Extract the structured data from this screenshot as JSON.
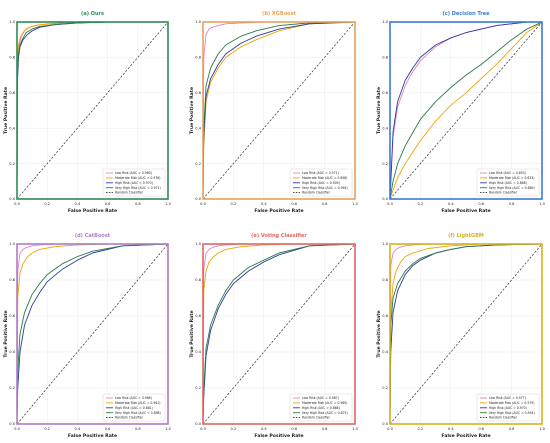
{
  "figure": {
    "xlabel": "False Positive Rate",
    "ylabel": "True Positive Rate",
    "xticks": [
      "0.0",
      "0.2",
      "0.4",
      "0.6",
      "0.8",
      "1.0"
    ],
    "yticks": [
      "0.0",
      "0.2",
      "0.4",
      "0.6",
      "0.8",
      "1.0"
    ]
  },
  "colors": {
    "low": "#e87ec4",
    "moderate": "#f0a500",
    "high": "#2b3c9e",
    "very_high": "#2d7a4a",
    "random": "#333333",
    "grid": "#e6e6e6"
  },
  "chart_data": [
    {
      "type": "line",
      "title": "(a) Ours",
      "frame_color": "#2e8b57",
      "xlabel": "False Positive Rate",
      "ylabel": "True Positive Rate",
      "xlim": [
        0,
        1
      ],
      "ylim": [
        0,
        1
      ],
      "grid": true,
      "legend_position": "lower-right",
      "series": [
        {
          "name": "Low Risk (AUC = 0.960)",
          "key": "low",
          "x": [
            0,
            0.003,
            0.01,
            0.02,
            0.03,
            0.05,
            0.08,
            0.12,
            0.2,
            0.3,
            0.5,
            0.7,
            1.0
          ],
          "y": [
            0,
            0.7,
            0.84,
            0.89,
            0.92,
            0.95,
            0.97,
            0.98,
            0.99,
            0.995,
            1,
            1,
            1
          ]
        },
        {
          "name": "Moderate Risk (AUC = 0.978)",
          "key": "moderate",
          "x": [
            0,
            0.003,
            0.01,
            0.02,
            0.04,
            0.06,
            0.1,
            0.15,
            0.25,
            0.4,
            0.6,
            1.0
          ],
          "y": [
            0,
            0.78,
            0.87,
            0.91,
            0.94,
            0.96,
            0.975,
            0.985,
            0.99,
            0.995,
            1,
            1
          ]
        },
        {
          "name": "High Risk (AUC = 0.970)",
          "key": "high",
          "x": [
            0,
            0.003,
            0.01,
            0.02,
            0.04,
            0.07,
            0.1,
            0.15,
            0.25,
            0.4,
            0.6,
            1.0
          ],
          "y": [
            0,
            0.66,
            0.8,
            0.86,
            0.9,
            0.93,
            0.95,
            0.97,
            0.985,
            0.995,
            1,
            1
          ]
        },
        {
          "name": "Very High Risk (AUC = 0.971)",
          "key": "very_high",
          "x": [
            0,
            0.003,
            0.01,
            0.02,
            0.04,
            0.06,
            0.1,
            0.15,
            0.25,
            0.4,
            0.6,
            1.0
          ],
          "y": [
            0,
            0.72,
            0.82,
            0.87,
            0.91,
            0.94,
            0.96,
            0.975,
            0.985,
            0.995,
            1,
            1
          ]
        },
        {
          "name": "Random Classifier",
          "key": "random",
          "dashed": true,
          "x": [
            0,
            1
          ],
          "y": [
            0,
            1
          ]
        }
      ]
    },
    {
      "type": "line",
      "title": "(b) XGBoost",
      "frame_color": "#e8a15a",
      "xlabel": "False Positive Rate",
      "ylabel": "True Positive Rate",
      "xlim": [
        0,
        1
      ],
      "ylim": [
        0,
        1
      ],
      "grid": true,
      "legend_position": "lower-right",
      "series": [
        {
          "name": "Low Risk (AUC = 0.971)",
          "key": "low",
          "x": [
            0,
            0.005,
            0.02,
            0.04,
            0.06,
            0.1,
            0.15,
            0.25,
            0.4,
            0.6,
            1.0
          ],
          "y": [
            0,
            0.8,
            0.93,
            0.96,
            0.97,
            0.98,
            0.99,
            0.995,
            1,
            1,
            1
          ]
        },
        {
          "name": "Moderate Risk (AUC = 0.898)",
          "key": "moderate",
          "x": [
            0,
            0.005,
            0.02,
            0.05,
            0.1,
            0.15,
            0.25,
            0.35,
            0.5,
            0.7,
            1.0
          ],
          "y": [
            0,
            0.3,
            0.55,
            0.66,
            0.74,
            0.8,
            0.86,
            0.9,
            0.95,
            0.99,
            1
          ]
        },
        {
          "name": "High Risk (AUC = 0.909)",
          "key": "high",
          "x": [
            0,
            0.005,
            0.02,
            0.05,
            0.1,
            0.15,
            0.25,
            0.35,
            0.5,
            0.7,
            1.0
          ],
          "y": [
            0,
            0.35,
            0.58,
            0.68,
            0.76,
            0.82,
            0.88,
            0.92,
            0.96,
            0.99,
            1
          ]
        },
        {
          "name": "Very High Risk (AUC = 0.944)",
          "key": "very_high",
          "x": [
            0,
            0.005,
            0.02,
            0.05,
            0.1,
            0.15,
            0.25,
            0.35,
            0.5,
            0.7,
            1.0
          ],
          "y": [
            0,
            0.4,
            0.64,
            0.74,
            0.82,
            0.87,
            0.92,
            0.95,
            0.98,
            0.995,
            1
          ]
        },
        {
          "name": "Random Classifier",
          "key": "random",
          "dashed": true,
          "x": [
            0,
            1
          ],
          "y": [
            0,
            1
          ]
        }
      ]
    },
    {
      "type": "line",
      "title": "(c) Decision Tree",
      "frame_color": "#3a7bd5",
      "xlabel": "False Positive Rate",
      "ylabel": "True Positive Rate",
      "xlim": [
        0,
        1
      ],
      "ylim": [
        0,
        1
      ],
      "grid": true,
      "legend_position": "lower-right",
      "series": [
        {
          "name": "Low Risk (AUC = 0.853)",
          "key": "low",
          "x": [
            0,
            0.02,
            0.05,
            0.1,
            0.15,
            0.2,
            0.3,
            0.4,
            0.5,
            0.6,
            0.7,
            0.8,
            0.9,
            1.0
          ],
          "y": [
            0,
            0.35,
            0.52,
            0.64,
            0.72,
            0.78,
            0.86,
            0.91,
            0.94,
            0.96,
            0.98,
            0.99,
            1,
            1
          ]
        },
        {
          "name": "Moderate Risk (AUC = 0.633)",
          "key": "moderate",
          "x": [
            0,
            0.02,
            0.05,
            0.1,
            0.2,
            0.3,
            0.4,
            0.5,
            0.6,
            0.7,
            0.8,
            0.9,
            1.0
          ],
          "y": [
            0,
            0.05,
            0.12,
            0.2,
            0.33,
            0.44,
            0.53,
            0.6,
            0.68,
            0.76,
            0.85,
            0.94,
            1
          ]
        },
        {
          "name": "High Risk (AUC = 0.866)",
          "key": "high",
          "x": [
            0,
            0.02,
            0.05,
            0.1,
            0.15,
            0.2,
            0.3,
            0.4,
            0.5,
            0.6,
            0.7,
            0.8,
            0.9,
            1.0
          ],
          "y": [
            0,
            0.38,
            0.55,
            0.67,
            0.74,
            0.8,
            0.87,
            0.91,
            0.94,
            0.96,
            0.98,
            0.99,
            1,
            1
          ]
        },
        {
          "name": "Very High Risk (AUC = 0.689)",
          "key": "very_high",
          "x": [
            0,
            0.02,
            0.05,
            0.1,
            0.2,
            0.3,
            0.4,
            0.5,
            0.6,
            0.7,
            0.8,
            0.9,
            1.0
          ],
          "y": [
            0,
            0.1,
            0.2,
            0.3,
            0.45,
            0.55,
            0.63,
            0.7,
            0.76,
            0.83,
            0.9,
            0.96,
            1
          ]
        },
        {
          "name": "Random Classifier",
          "key": "random",
          "dashed": true,
          "x": [
            0,
            1
          ],
          "y": [
            0,
            1
          ]
        }
      ]
    },
    {
      "type": "line",
      "title": "(d) CatBoost",
      "frame_color": "#b07cc6",
      "xlabel": "False Positive Rate",
      "ylabel": "True Positive Rate",
      "xlim": [
        0,
        1
      ],
      "ylim": [
        0,
        1
      ],
      "grid": true,
      "legend_position": "lower-right",
      "series": [
        {
          "name": "Low Risk (AUC = 0.986)",
          "key": "low",
          "x": [
            0,
            0.005,
            0.02,
            0.04,
            0.06,
            0.1,
            0.15,
            0.25,
            0.4,
            0.6,
            1.0
          ],
          "y": [
            0,
            0.85,
            0.95,
            0.97,
            0.98,
            0.99,
            0.995,
            1,
            1,
            1,
            1
          ]
        },
        {
          "name": "Moderate Risk (AUC = 0.961)",
          "key": "moderate",
          "x": [
            0,
            0.005,
            0.02,
            0.04,
            0.07,
            0.1,
            0.15,
            0.25,
            0.4,
            0.6,
            1.0
          ],
          "y": [
            0,
            0.7,
            0.84,
            0.89,
            0.93,
            0.95,
            0.97,
            0.985,
            0.995,
            1,
            1
          ]
        },
        {
          "name": "High Risk (AUC = 0.881)",
          "key": "high",
          "x": [
            0,
            0.005,
            0.02,
            0.05,
            0.1,
            0.15,
            0.2,
            0.3,
            0.4,
            0.5,
            0.7,
            1.0
          ],
          "y": [
            0,
            0.2,
            0.4,
            0.55,
            0.66,
            0.73,
            0.79,
            0.86,
            0.91,
            0.95,
            0.99,
            1
          ]
        },
        {
          "name": "Very High Risk (AUC = 0.898)",
          "key": "very_high",
          "x": [
            0,
            0.005,
            0.02,
            0.05,
            0.1,
            0.15,
            0.2,
            0.3,
            0.4,
            0.5,
            0.7,
            1.0
          ],
          "y": [
            0,
            0.3,
            0.5,
            0.62,
            0.72,
            0.78,
            0.83,
            0.89,
            0.93,
            0.96,
            0.99,
            1
          ]
        },
        {
          "name": "Random Classifier",
          "key": "random",
          "dashed": true,
          "x": [
            0,
            1
          ],
          "y": [
            0,
            1
          ]
        }
      ]
    },
    {
      "type": "line",
      "title": "(e) Voting Classifier",
      "frame_color": "#e06666",
      "xlabel": "False Positive Rate",
      "ylabel": "True Positive Rate",
      "xlim": [
        0,
        1
      ],
      "ylim": [
        0,
        1
      ],
      "grid": true,
      "legend_position": "lower-right",
      "series": [
        {
          "name": "Low Risk (AUC = 0.987)",
          "key": "low",
          "x": [
            0,
            0.005,
            0.02,
            0.04,
            0.06,
            0.1,
            0.15,
            0.25,
            0.4,
            0.6,
            1.0
          ],
          "y": [
            0,
            0.86,
            0.95,
            0.97,
            0.98,
            0.99,
            0.995,
            1,
            1,
            1,
            1
          ]
        },
        {
          "name": "Moderate Risk (AUC = 0.965)",
          "key": "moderate",
          "x": [
            0,
            0.005,
            0.02,
            0.04,
            0.07,
            0.1,
            0.15,
            0.25,
            0.4,
            0.6,
            1.0
          ],
          "y": [
            0,
            0.74,
            0.85,
            0.9,
            0.93,
            0.95,
            0.97,
            0.985,
            0.995,
            1,
            1
          ]
        },
        {
          "name": "High Risk (AUC = 0.868)",
          "key": "high",
          "x": [
            0,
            0.005,
            0.02,
            0.05,
            0.1,
            0.15,
            0.2,
            0.3,
            0.4,
            0.5,
            0.7,
            1.0
          ],
          "y": [
            0,
            0.15,
            0.38,
            0.52,
            0.64,
            0.72,
            0.78,
            0.85,
            0.9,
            0.94,
            0.99,
            1
          ]
        },
        {
          "name": "Very High Risk (AUC = 0.875)",
          "key": "very_high",
          "x": [
            0,
            0.005,
            0.02,
            0.05,
            0.1,
            0.15,
            0.2,
            0.3,
            0.4,
            0.5,
            0.7,
            1.0
          ],
          "y": [
            0,
            0.2,
            0.42,
            0.55,
            0.66,
            0.74,
            0.8,
            0.87,
            0.91,
            0.95,
            0.99,
            1
          ]
        },
        {
          "name": "Random Classifier",
          "key": "random",
          "dashed": true,
          "x": [
            0,
            1
          ],
          "y": [
            0,
            1
          ]
        }
      ]
    },
    {
      "type": "line",
      "title": "(f) LightGBM",
      "frame_color": "#d4b21c",
      "xlabel": "False Positive Rate",
      "ylabel": "True Positive Rate",
      "xlim": [
        0,
        1
      ],
      "ylim": [
        0,
        1
      ],
      "grid": true,
      "legend_position": "lower-right",
      "series": [
        {
          "name": "Low Risk (AUC = 0.977)",
          "key": "low",
          "x": [
            0,
            0.005,
            0.02,
            0.04,
            0.06,
            0.1,
            0.15,
            0.25,
            0.4,
            0.6,
            1.0
          ],
          "y": [
            0,
            0.88,
            0.95,
            0.97,
            0.98,
            0.99,
            0.995,
            1,
            1,
            1,
            1
          ]
        },
        {
          "name": "Moderate Risk (AUC = 0.979)",
          "key": "moderate",
          "x": [
            0,
            0.005,
            0.02,
            0.04,
            0.07,
            0.1,
            0.15,
            0.25,
            0.4,
            0.6,
            1.0
          ],
          "y": [
            0,
            0.62,
            0.78,
            0.85,
            0.9,
            0.93,
            0.95,
            0.975,
            0.99,
            1,
            1
          ]
        },
        {
          "name": "High Risk (AUC = 0.970)",
          "key": "high",
          "x": [
            0,
            0.005,
            0.02,
            0.05,
            0.1,
            0.15,
            0.2,
            0.3,
            0.4,
            0.5,
            0.7,
            1.0
          ],
          "y": [
            0,
            0.4,
            0.62,
            0.74,
            0.83,
            0.88,
            0.91,
            0.95,
            0.97,
            0.985,
            0.995,
            1
          ]
        },
        {
          "name": "Very High Risk (AUC = 0.954)",
          "key": "very_high",
          "x": [
            0,
            0.005,
            0.02,
            0.05,
            0.1,
            0.15,
            0.2,
            0.3,
            0.4,
            0.5,
            0.7,
            1.0
          ],
          "y": [
            0,
            0.55,
            0.7,
            0.78,
            0.85,
            0.89,
            0.92,
            0.95,
            0.97,
            0.985,
            0.995,
            1
          ]
        },
        {
          "name": "Random Classifier",
          "key": "random",
          "dashed": true,
          "x": [
            0,
            1
          ],
          "y": [
            0,
            1
          ]
        }
      ]
    }
  ]
}
